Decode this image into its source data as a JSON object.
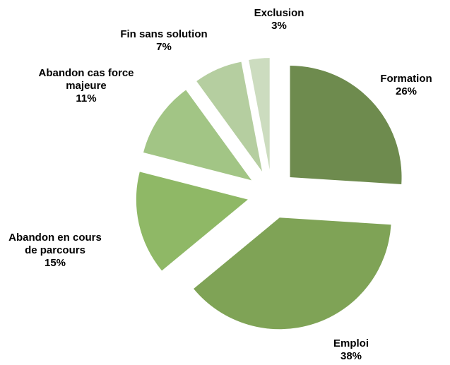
{
  "chart_data": {
    "type": "pie",
    "categories": [
      "Formation",
      "Emploi",
      "Abandon en cours de parcours",
      "Abandon cas force majeure",
      "Fin sans solution",
      "Exclusion"
    ],
    "values": [
      26,
      38,
      15,
      11,
      7,
      3
    ],
    "value_labels": [
      "26%",
      "38%",
      "15%",
      "11%",
      "7%",
      "3%"
    ],
    "colors": [
      "#6e8b4e",
      "#7fa356",
      "#8fb866",
      "#a2c585",
      "#b5cea0",
      "#ccdcbf"
    ]
  }
}
